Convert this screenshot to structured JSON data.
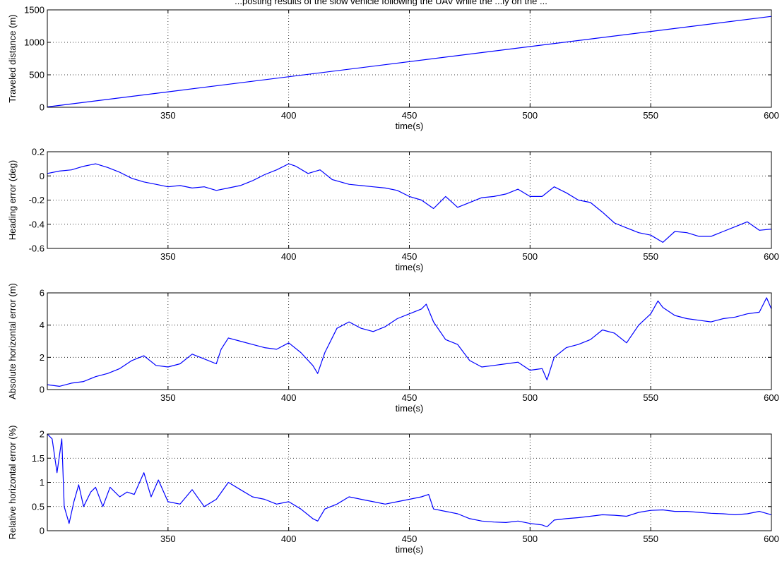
{
  "figure": {
    "title": "...posting results of the slow vehicle following the UAV while the ...ly on the ..."
  },
  "chart_data": [
    {
      "type": "line",
      "title": "",
      "xlabel": "time(s)",
      "ylabel": "Traveled distance (m)",
      "xlim": [
        300,
        600
      ],
      "ylim": [
        0,
        1500
      ],
      "xticks": [
        350,
        400,
        450,
        500,
        550,
        600
      ],
      "yticks": [
        0,
        500,
        1000,
        1500
      ],
      "grid": true,
      "color": "#0000ff",
      "x": [
        300,
        600
      ],
      "y": [
        5,
        1400
      ]
    },
    {
      "type": "line",
      "title": "",
      "xlabel": "time(s)",
      "ylabel": "Heading error (deg)",
      "xlim": [
        300,
        600
      ],
      "ylim": [
        -0.6,
        0.2
      ],
      "xticks": [
        350,
        400,
        450,
        500,
        550,
        600
      ],
      "yticks": [
        -0.6,
        -0.4,
        -0.2,
        0,
        0.2
      ],
      "grid": true,
      "color": "#0000ff",
      "x": [
        300,
        305,
        310,
        315,
        320,
        325,
        330,
        335,
        340,
        345,
        350,
        355,
        360,
        365,
        370,
        375,
        380,
        385,
        390,
        395,
        400,
        403,
        408,
        413,
        418,
        425,
        430,
        435,
        440,
        445,
        450,
        455,
        460,
        465,
        470,
        475,
        480,
        485,
        490,
        495,
        500,
        505,
        510,
        515,
        520,
        525,
        530,
        535,
        540,
        545,
        550,
        555,
        560,
        565,
        570,
        575,
        580,
        585,
        590,
        595,
        600
      ],
      "y": [
        0.02,
        0.04,
        0.05,
        0.08,
        0.1,
        0.07,
        0.03,
        -0.02,
        -0.05,
        -0.07,
        -0.09,
        -0.08,
        -0.1,
        -0.09,
        -0.12,
        -0.1,
        -0.08,
        -0.04,
        0.01,
        0.05,
        0.1,
        0.08,
        0.02,
        0.05,
        -0.03,
        -0.07,
        -0.08,
        -0.09,
        -0.1,
        -0.12,
        -0.17,
        -0.2,
        -0.27,
        -0.17,
        -0.26,
        -0.22,
        -0.18,
        -0.17,
        -0.15,
        -0.11,
        -0.17,
        -0.17,
        -0.09,
        -0.14,
        -0.2,
        -0.22,
        -0.3,
        -0.39,
        -0.43,
        -0.47,
        -0.49,
        -0.55,
        -0.46,
        -0.47,
        -0.5,
        -0.5,
        -0.46,
        -0.42,
        -0.38,
        -0.45,
        -0.44
      ]
    },
    {
      "type": "line",
      "title": "",
      "xlabel": "time(s)",
      "ylabel": "Absolute horizontal error (m)",
      "xlim": [
        300,
        600
      ],
      "ylim": [
        0,
        6
      ],
      "xticks": [
        350,
        400,
        450,
        500,
        550,
        600
      ],
      "yticks": [
        0,
        2,
        4,
        6
      ],
      "grid": true,
      "color": "#0000ff",
      "x": [
        300,
        305,
        310,
        315,
        320,
        325,
        330,
        335,
        340,
        345,
        350,
        355,
        360,
        365,
        370,
        372,
        375,
        380,
        385,
        390,
        395,
        400,
        405,
        410,
        412,
        415,
        420,
        425,
        430,
        435,
        440,
        445,
        450,
        455,
        457,
        460,
        465,
        470,
        475,
        480,
        485,
        490,
        495,
        500,
        505,
        507,
        510,
        515,
        520,
        525,
        530,
        535,
        540,
        545,
        550,
        553,
        555,
        560,
        565,
        570,
        575,
        580,
        585,
        590,
        595,
        598,
        600
      ],
      "y": [
        0.3,
        0.2,
        0.4,
        0.5,
        0.8,
        1.0,
        1.3,
        1.8,
        2.1,
        1.5,
        1.4,
        1.6,
        2.2,
        1.9,
        1.6,
        2.5,
        3.2,
        3.0,
        2.8,
        2.6,
        2.5,
        2.9,
        2.3,
        1.5,
        1.0,
        2.3,
        3.8,
        4.2,
        3.8,
        3.6,
        3.9,
        4.4,
        4.7,
        5.0,
        5.3,
        4.2,
        3.1,
        2.8,
        1.8,
        1.4,
        1.5,
        1.6,
        1.7,
        1.2,
        1.3,
        0.6,
        2.0,
        2.6,
        2.8,
        3.1,
        3.7,
        3.5,
        2.9,
        4.0,
        4.7,
        5.5,
        5.1,
        4.6,
        4.4,
        4.3,
        4.2,
        4.4,
        4.5,
        4.7,
        4.8,
        5.7,
        5.0
      ]
    },
    {
      "type": "line",
      "title": "",
      "xlabel": "time(s)",
      "ylabel": "Relative horizontal error (%)",
      "xlim": [
        300,
        600
      ],
      "ylim": [
        0,
        2
      ],
      "xticks": [
        350,
        400,
        450,
        500,
        550,
        600
      ],
      "yticks": [
        0,
        0.5,
        1,
        1.5,
        2
      ],
      "grid": true,
      "color": "#0000ff",
      "x": [
        300,
        302,
        304,
        306,
        307,
        309,
        311,
        313,
        315,
        318,
        320,
        323,
        326,
        330,
        333,
        336,
        340,
        343,
        346,
        350,
        355,
        360,
        365,
        370,
        375,
        380,
        385,
        390,
        395,
        400,
        405,
        410,
        412,
        415,
        420,
        425,
        430,
        435,
        440,
        445,
        450,
        455,
        458,
        460,
        465,
        470,
        475,
        480,
        485,
        490,
        495,
        500,
        505,
        507,
        510,
        515,
        520,
        525,
        530,
        535,
        540,
        545,
        550,
        555,
        560,
        565,
        570,
        575,
        580,
        585,
        590,
        595,
        600
      ],
      "y": [
        2.0,
        1.9,
        1.2,
        1.9,
        0.5,
        0.15,
        0.6,
        0.95,
        0.5,
        0.8,
        0.9,
        0.5,
        0.9,
        0.7,
        0.8,
        0.75,
        1.2,
        0.7,
        1.05,
        0.6,
        0.55,
        0.85,
        0.5,
        0.65,
        1.0,
        0.85,
        0.7,
        0.65,
        0.55,
        0.6,
        0.45,
        0.25,
        0.2,
        0.45,
        0.55,
        0.7,
        0.65,
        0.6,
        0.55,
        0.6,
        0.65,
        0.7,
        0.75,
        0.45,
        0.4,
        0.35,
        0.25,
        0.2,
        0.18,
        0.17,
        0.2,
        0.15,
        0.12,
        0.08,
        0.22,
        0.25,
        0.27,
        0.3,
        0.33,
        0.32,
        0.3,
        0.38,
        0.42,
        0.43,
        0.4,
        0.4,
        0.38,
        0.36,
        0.35,
        0.33,
        0.35,
        0.4,
        0.33
      ]
    }
  ]
}
